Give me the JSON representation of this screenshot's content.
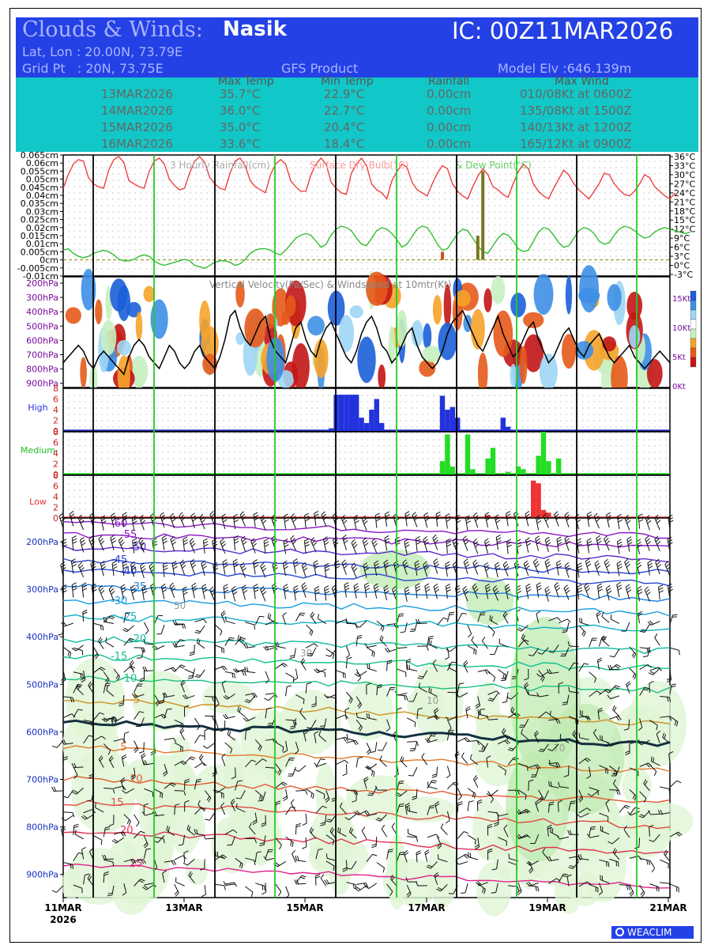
{
  "header": {
    "title_prefix": "Clouds & Winds:",
    "location": "Nasik",
    "ic": "IC: 00Z11MAR2026",
    "latlon": "Lat, Lon : 20.00N, 73.79E",
    "gridpt": "Grid Pt   : 20N, 73.75E",
    "product": "GFS Product",
    "elevation": "Model Elv :646.139m"
  },
  "summary": {
    "headers": [
      "Max Temp",
      "Min Temp",
      "Rainfall",
      "Max Wind"
    ],
    "rows": [
      {
        "date": "13MAR2026",
        "max": "35.7°C",
        "min": "22.9°C",
        "rain": "0.00cm",
        "wind": "010/08Kt at 0600Z"
      },
      {
        "date": "14MAR2026",
        "max": "36.0°C",
        "min": "22.7°C",
        "rain": "0.00cm",
        "wind": "135/08Kt at 1500Z"
      },
      {
        "date": "15MAR2026",
        "max": "35.0°C",
        "min": "20.4°C",
        "rain": "0.00cm",
        "wind": "140/13Kt at 1200Z"
      },
      {
        "date": "16MAR2026",
        "max": "33.6°C",
        "min": "18.4°C",
        "rain": "0.00cm",
        "wind": "165/12Kt at 0900Z"
      }
    ]
  },
  "chart_data": [
    {
      "type": "line",
      "title": "3 Hourly Rainfall(cm)  Surface Dry Bulb(°C)  & Dew Point(°C)",
      "title_parts": [
        "3 Hourly Rainfall(cm)",
        "Surface Dry Bulb(°C)",
        "& Dew Point(°C)"
      ],
      "left_ticks": [
        "0.065cm",
        "0.06cm",
        "0.055cm",
        "0.05cm",
        "0.045cm",
        "0.04cm",
        "0.035cm",
        "0.03cm",
        "0.025cm",
        "0.02cm",
        "0.015cm",
        "0.01cm",
        "0.005cm",
        "0cm",
        "-0.005cm",
        "-0.01cm"
      ],
      "right_ticks": [
        "36°C",
        "33°C",
        "30°C",
        "27°C",
        "24°C",
        "21°C",
        "18°C",
        "15°C",
        "12°C",
        "9°C",
        "6°C",
        "3°C",
        "0°C",
        "-3°C"
      ],
      "ylim_rain": [
        -0.01,
        0.065
      ],
      "ylim_temp": [
        -3,
        36
      ],
      "colors": {
        "drybulb": "#ee3333",
        "dewpoint": "#22bb22",
        "rain": "#777722"
      },
      "series": [
        {
          "key": "drybulb",
          "values": [
            25.5,
            30,
            33.5,
            35,
            34.5,
            29,
            27,
            26,
            25.5,
            31.5,
            35,
            36,
            34,
            28,
            27,
            26,
            25.5,
            31,
            34.5,
            35.5,
            33.5,
            28.5,
            26.5,
            25,
            25.5,
            30.5,
            34.5,
            36,
            34,
            29,
            27,
            25.5,
            25,
            30.5,
            34.5,
            35.5,
            33,
            28,
            26,
            25,
            24,
            30,
            33.5,
            35,
            33.5,
            28,
            26,
            24.5,
            24.5,
            30,
            33.5,
            35.5,
            33.5,
            27.5,
            25.5,
            24,
            23.5,
            30.5,
            33.5,
            35.5,
            33,
            27,
            25,
            24,
            22,
            28,
            31,
            33.5,
            32.5,
            27.5,
            25,
            24,
            23,
            27,
            30.5,
            33,
            32,
            27,
            24.5,
            23,
            22,
            26,
            29.5,
            32,
            30,
            26,
            25,
            23.5,
            22.5,
            27,
            31,
            33.5,
            32,
            27,
            24.5,
            23,
            22,
            25.5,
            28.5,
            31.5,
            30,
            27,
            25,
            23.5,
            22,
            24.5,
            27,
            30.5,
            30,
            27,
            25,
            23.5,
            23,
            24.5,
            27,
            30,
            29,
            26,
            24.5,
            23,
            22,
            24
          ]
        },
        {
          "key": "dewpoint",
          "values": [
            5,
            5.5,
            4,
            3,
            2.5,
            3,
            4,
            4.5,
            5,
            4.5,
            3.5,
            2,
            1.5,
            1.5,
            2,
            3,
            3.5,
            3,
            1.5,
            0.5,
            0,
            0.5,
            1,
            1.5,
            2,
            1.5,
            0,
            -0.5,
            -1,
            0,
            1,
            1.5,
            1.5,
            1,
            0,
            0.5,
            2,
            4,
            5,
            5.5,
            5.5,
            5,
            4,
            3.5,
            5,
            7,
            9,
            10,
            10.5,
            10,
            8,
            6,
            7,
            10,
            12,
            13,
            12.5,
            11.5,
            9,
            7,
            6.5,
            9,
            11.5,
            12.5,
            12,
            10.5,
            8.5,
            6,
            7,
            9.5,
            12,
            13,
            12.5,
            10,
            7,
            5,
            5.5,
            8,
            10.5,
            12,
            11.5,
            9,
            6.5,
            4.5,
            4,
            6.5,
            9,
            10.5,
            10,
            8,
            5.5,
            4.5,
            5,
            8,
            11,
            12.5,
            12,
            10,
            7.5,
            6,
            6.5,
            9,
            11.5,
            12.5,
            12,
            10.5,
            8,
            7,
            7.5,
            10,
            12,
            13,
            12.5,
            11.5,
            10,
            9,
            9.5,
            11,
            12,
            12.5,
            12,
            11.5,
            11,
            10.5,
            11
          ]
        },
        {
          "key": "rain",
          "points": [
            {
              "x": 75,
              "y": 0.005
            },
            {
              "x": 82,
              "y": 0.015
            },
            {
              "x": 83,
              "y": 0.055
            }
          ]
        }
      ]
    },
    {
      "type": "heatmap",
      "title": "Vertical Velocity(Pa/Sec) & Windspeed at 10mtr(Kt)",
      "y_ticks": [
        "200hPa",
        "300hPa",
        "400hPa",
        "500hPa",
        "600hPa",
        "700hPa",
        "800hPa",
        "900hPa"
      ],
      "right_ticks": [
        "15Kt",
        "10Kt",
        "5Kt",
        "0Kt"
      ],
      "colorbar": [
        "#1b5fd8",
        "#3d8fe6",
        "#9fd6f5",
        "#ffffff",
        "#c8f0c0",
        "#f5a32a",
        "#e55a1a",
        "#c31515"
      ],
      "windspeed_kt": [
        4,
        5,
        6,
        7,
        6,
        4,
        3,
        5,
        6,
        5,
        4,
        3,
        2,
        5,
        7,
        8,
        7,
        5,
        4,
        3,
        5,
        7,
        6,
        4,
        3,
        4,
        6,
        7,
        5,
        4,
        3,
        5,
        8,
        12,
        13,
        10,
        8,
        7,
        9,
        11,
        12,
        8,
        6,
        5,
        4,
        7,
        10,
        11,
        8,
        6,
        5,
        8,
        10,
        11,
        9,
        7,
        5,
        4,
        6,
        9,
        11,
        12,
        10,
        7,
        6,
        4,
        5,
        7,
        9,
        10,
        7,
        5,
        4,
        3,
        4,
        6,
        9,
        11,
        12,
        13,
        11,
        9,
        7,
        6,
        8,
        10,
        12,
        9,
        7,
        5,
        6,
        8,
        10,
        11,
        8,
        6,
        4,
        5,
        7,
        9,
        10,
        8,
        6,
        5,
        7,
        8,
        9,
        7,
        5,
        4,
        5,
        6,
        7,
        5,
        4,
        3,
        4,
        5,
        6,
        5,
        4
      ]
    },
    {
      "type": "bar",
      "title": "High",
      "ylim": [
        0,
        8
      ],
      "y_ticks": [
        "8",
        "6",
        "4",
        "2",
        "0"
      ],
      "color": "#2233dd",
      "values": [
        0,
        0,
        0,
        0,
        0,
        0,
        0,
        0,
        0,
        0,
        0,
        0,
        0,
        0,
        0,
        0,
        0,
        0,
        0,
        0,
        0,
        0,
        0,
        0,
        0,
        0,
        0,
        0,
        0,
        0,
        0,
        0,
        0,
        0,
        0,
        0,
        0,
        0,
        0,
        0,
        0,
        0,
        0,
        0,
        0,
        0,
        0,
        0,
        0,
        0,
        0,
        0,
        0.2,
        0.5,
        6.8,
        6.8,
        6.8,
        6.8,
        6.8,
        2.5,
        1.5,
        4,
        6,
        1.5,
        0,
        0,
        0,
        0,
        0,
        0,
        0,
        0,
        0,
        0,
        0,
        6.6,
        4,
        4.5,
        2.5,
        0,
        0,
        0,
        0,
        0,
        0,
        0,
        0,
        2.5,
        0.8,
        0,
        0,
        0,
        0,
        0,
        0,
        0,
        0,
        0,
        0,
        0,
        0,
        0,
        0,
        0,
        0,
        0,
        0,
        0,
        0,
        0,
        0,
        0,
        0,
        0,
        0,
        0
      ]
    },
    {
      "type": "bar",
      "title": "Medium",
      "ylim": [
        0,
        8
      ],
      "y_ticks": [
        "8",
        "6",
        "4",
        "2",
        "0"
      ],
      "color": "#22dd22",
      "values": [
        0,
        0,
        0,
        0,
        0,
        0,
        0,
        0,
        0,
        0,
        0,
        0,
        0,
        0,
        0,
        0,
        0,
        0,
        0,
        0,
        0,
        0,
        0,
        0,
        0,
        0,
        0,
        0,
        0,
        0,
        0,
        0,
        0,
        0,
        0,
        0,
        0,
        0,
        0,
        0,
        0,
        0,
        0,
        0,
        0,
        0,
        0,
        0,
        0,
        0,
        0,
        0,
        0,
        0,
        0,
        0,
        0,
        0,
        0,
        0,
        0,
        0,
        0,
        0,
        0,
        0,
        0,
        0,
        0,
        0,
        0,
        0,
        0,
        0,
        0,
        2.5,
        7.5,
        1.5,
        0,
        0,
        7.5,
        1,
        0,
        0,
        3,
        5,
        0,
        0,
        0.5,
        0,
        1.5,
        1,
        0,
        0,
        3.5,
        8,
        2.5,
        0,
        3,
        0,
        0,
        0,
        0,
        0,
        0,
        0,
        0,
        0,
        0,
        0,
        0,
        0,
        0,
        0,
        0,
        0,
        0,
        0,
        0,
        0,
        0,
        0
      ]
    },
    {
      "type": "bar",
      "title": "Low",
      "ylim": [
        0,
        8
      ],
      "y_ticks": [
        "8",
        "6",
        "4",
        "2",
        "0"
      ],
      "color": "#ee3333",
      "values": [
        0,
        0,
        0,
        0,
        0,
        0,
        0,
        0,
        0,
        0,
        0,
        0,
        0,
        0,
        0,
        0,
        0,
        0,
        0,
        0,
        0,
        0,
        0,
        0,
        0,
        0,
        0,
        0,
        0,
        0,
        0,
        0,
        0,
        0,
        0,
        0,
        0,
        0,
        0,
        0,
        0,
        0,
        0,
        0,
        0,
        0,
        0,
        0,
        0,
        0,
        0,
        0,
        0,
        0,
        0,
        0,
        0,
        0,
        0,
        0,
        0,
        0,
        0,
        0,
        0,
        0,
        0,
        0,
        0,
        0,
        0,
        0,
        0,
        0,
        0,
        0,
        0,
        0,
        0,
        0,
        0,
        0,
        0,
        0,
        0.5,
        0,
        0,
        0,
        0,
        0,
        0,
        0,
        0,
        7,
        6.5,
        1.5,
        1,
        0,
        0,
        0,
        0,
        0,
        0,
        0,
        0,
        0,
        0,
        0,
        0,
        0,
        0,
        0,
        0,
        0,
        0,
        0,
        0,
        0,
        0,
        0,
        0,
        0
      ]
    },
    {
      "type": "line",
      "title": "Temperature (°C), relative humidity (%) and winds",
      "y_ticks": [
        "200hPa",
        "300hPa",
        "400hPa",
        "500hPa",
        "600hPa",
        "700hPa",
        "800hPa",
        "900hPa"
      ],
      "x_ticks": [
        "11MAR",
        "13MAR",
        "15MAR",
        "17MAR",
        "19MAR",
        "21MAR"
      ],
      "x_year": "2026",
      "isotherm_labels": [
        "-60",
        "-55",
        "-50",
        "-45",
        "-40",
        "-35",
        "-30",
        "-25",
        "-20",
        "-15",
        "-10",
        "-5",
        "0",
        "5",
        "10",
        "15",
        "20",
        "25"
      ],
      "rh_labels": [
        "50",
        "30",
        "10",
        "70"
      ],
      "colors": {
        "cold": "#8a18c8",
        "mid": "#1f8fe0",
        "zero": "#143040",
        "warm": "#e04040",
        "hot": "#e0208a"
      }
    }
  ],
  "footer": {
    "brand": "WEACLIM"
  }
}
